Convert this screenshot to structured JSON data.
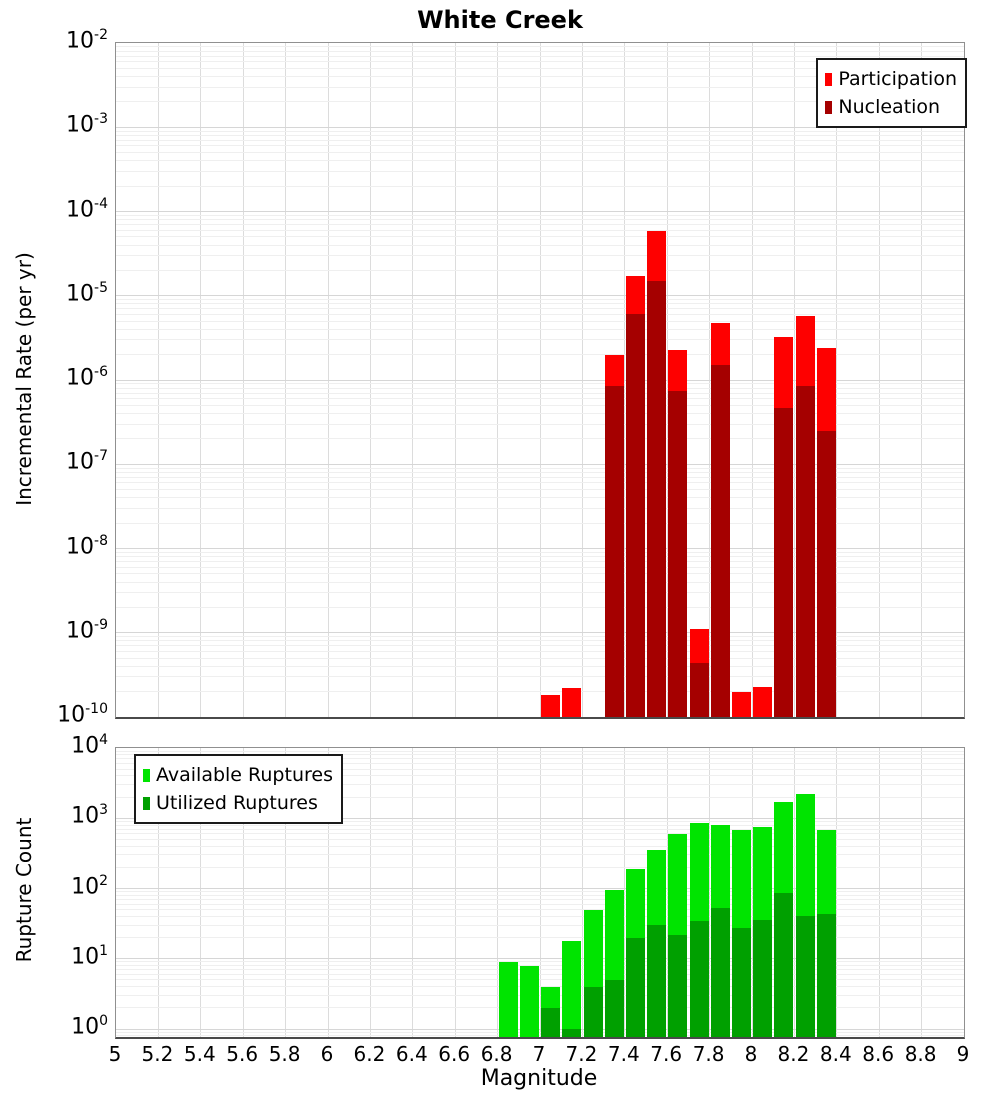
{
  "title": "White Creek",
  "colors": {
    "participation": "#fe0000",
    "nucleation": "#a50000",
    "available": "#00e400",
    "utilized": "#00a000"
  },
  "x_axis": {
    "label": "Magnitude",
    "ticks": [
      "5",
      "5.2",
      "5.4",
      "5.6",
      "5.8",
      "6",
      "6.2",
      "6.4",
      "6.6",
      "6.8",
      "7",
      "7.2",
      "7.4",
      "7.6",
      "7.8",
      "8",
      "8.2",
      "8.4",
      "8.6",
      "8.8",
      "9"
    ]
  },
  "chart_data": [
    {
      "type": "bar",
      "title": "White Creek",
      "xlabel": "Magnitude",
      "ylabel": "Incremental Rate (per yr)",
      "xlim": [
        5,
        9
      ],
      "ylim": [
        1e-10,
        0.01
      ],
      "ytick_exponents": [
        -2,
        -3,
        -4,
        -5,
        -6,
        -7,
        -8,
        -9,
        -10
      ],
      "grid": true,
      "legend_position": "top-right",
      "bin_width": 0.1,
      "x": [
        7.05,
        7.15,
        7.35,
        7.45,
        7.55,
        7.65,
        7.75,
        7.85,
        7.95,
        8.05,
        8.15,
        8.25,
        8.35
      ],
      "series": [
        {
          "name": "Participation",
          "color_key": "participation",
          "values": [
            1.8e-10,
            2.2e-10,
            2e-06,
            1.7e-05,
            5.8e-05,
            2.3e-06,
            1.1e-09,
            4.7e-06,
            2e-10,
            2.3e-10,
            3.2e-06,
            5.8e-06,
            2.4e-06
          ]
        },
        {
          "name": "Nucleation",
          "color_key": "nucleation",
          "values": [
            0,
            0,
            8.5e-07,
            6e-06,
            1.5e-05,
            7.5e-07,
            4.4e-10,
            1.5e-06,
            0,
            0,
            4.7e-07,
            8.5e-07,
            2.5e-07
          ]
        }
      ]
    },
    {
      "type": "bar",
      "xlabel": "Magnitude",
      "ylabel": "Rupture Count",
      "xlim": [
        5,
        9
      ],
      "ylim": [
        1,
        10000
      ],
      "ytick_exponents": [
        4,
        3,
        2,
        1,
        0
      ],
      "grid": true,
      "legend_position": "top-left",
      "bin_width": 0.1,
      "x": [
        6.85,
        6.95,
        7.05,
        7.15,
        7.25,
        7.35,
        7.45,
        7.55,
        7.65,
        7.75,
        7.85,
        7.95,
        8.05,
        8.15,
        8.25,
        8.35
      ],
      "series": [
        {
          "name": "Available Ruptures",
          "color_key": "available",
          "values": [
            9,
            8,
            4,
            18,
            50,
            95,
            190,
            350,
            600,
            850,
            800,
            670,
            760,
            1700,
            2200,
            680
          ]
        },
        {
          "name": "Utilized Ruptures",
          "color_key": "utilized",
          "values": [
            0,
            0,
            2,
            1,
            4,
            5,
            20,
            30,
            22,
            34,
            52,
            27,
            36,
            85,
            40,
            44
          ]
        }
      ]
    }
  ]
}
